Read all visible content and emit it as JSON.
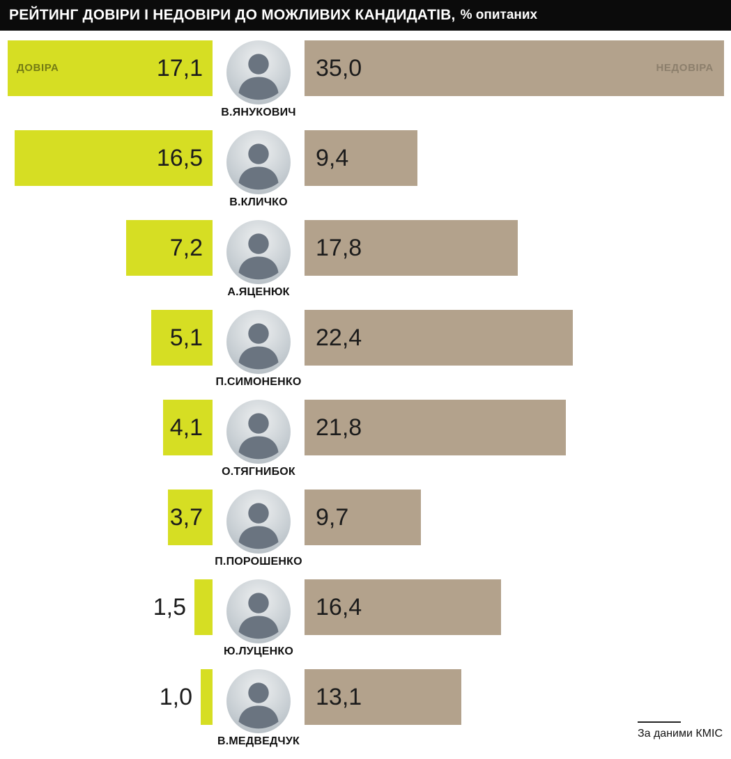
{
  "header": {
    "title": "РЕЙТИНГ ДОВІРИ І НЕДОВІРИ ДО МОЖЛИВИХ КАНДИДАТІВ,",
    "suffix": "% опитаних"
  },
  "colors": {
    "header_bg": "#0b0b0b",
    "trust_bar": "#d6de23",
    "distrust_bar": "#b3a28c",
    "trust_series_label_text": "#747c14",
    "distrust_series_label_text": "#8c7f6c"
  },
  "rows": [
    {
      "name": "В.ЯНУКОВИЧ",
      "trust": "17,1",
      "distrust": "35,0"
    },
    {
      "name": "В.КЛИЧКО",
      "trust": "16,5",
      "distrust": "9,4"
    },
    {
      "name": "А.ЯЦЕНЮК",
      "trust": "7,2",
      "distrust": "17,8"
    },
    {
      "name": "П.СИМОНЕНКО",
      "trust": "5,1",
      "distrust": "22,4"
    },
    {
      "name": "О.ТЯГНИБОК",
      "trust": "4,1",
      "distrust": "21,8"
    },
    {
      "name": "П.ПОРОШЕНКО",
      "trust": "3,7",
      "distrust": "9,7"
    },
    {
      "name": "Ю.ЛУЦЕНКО",
      "trust": "1,5",
      "distrust": "16,4"
    },
    {
      "name": "В.МЕДВЕДЧУК",
      "trust": "1,0",
      "distrust": "13,1"
    }
  ],
  "source": "За даними КМІС",
  "chart_data": {
    "type": "bar",
    "orientation": "diverging-horizontal",
    "title": "РЕЙТИНГ ДОВІРИ І НЕДОВІРИ ДО МОЖЛИВИХ КАНДИДАТІВ, % опитаних",
    "unit": "% опитаних",
    "categories": [
      "В.ЯНУКОВИЧ",
      "В.КЛИЧКО",
      "А.ЯЦЕНЮК",
      "П.СИМОНЕНКО",
      "О.ТЯГНИБОК",
      "П.ПОРОШЕНКО",
      "Ю.ЛУЦЕНКО",
      "В.МЕДВЕДЧУК"
    ],
    "series": [
      {
        "name": "ДОВІРА",
        "values": [
          17.1,
          16.5,
          7.2,
          5.1,
          4.1,
          3.7,
          1.5,
          1.0
        ],
        "color": "#d6de23",
        "direction": "left"
      },
      {
        "name": "НЕДОВІРА",
        "values": [
          35.0,
          9.4,
          17.8,
          22.4,
          21.8,
          9.7,
          16.4,
          13.1
        ],
        "color": "#b3a28c",
        "direction": "right"
      }
    ],
    "xlim": [
      0,
      35
    ],
    "grid": false,
    "legend_position": "inside-first-row",
    "value_label_format": "comma-decimal",
    "source": "За даними КМІС"
  }
}
